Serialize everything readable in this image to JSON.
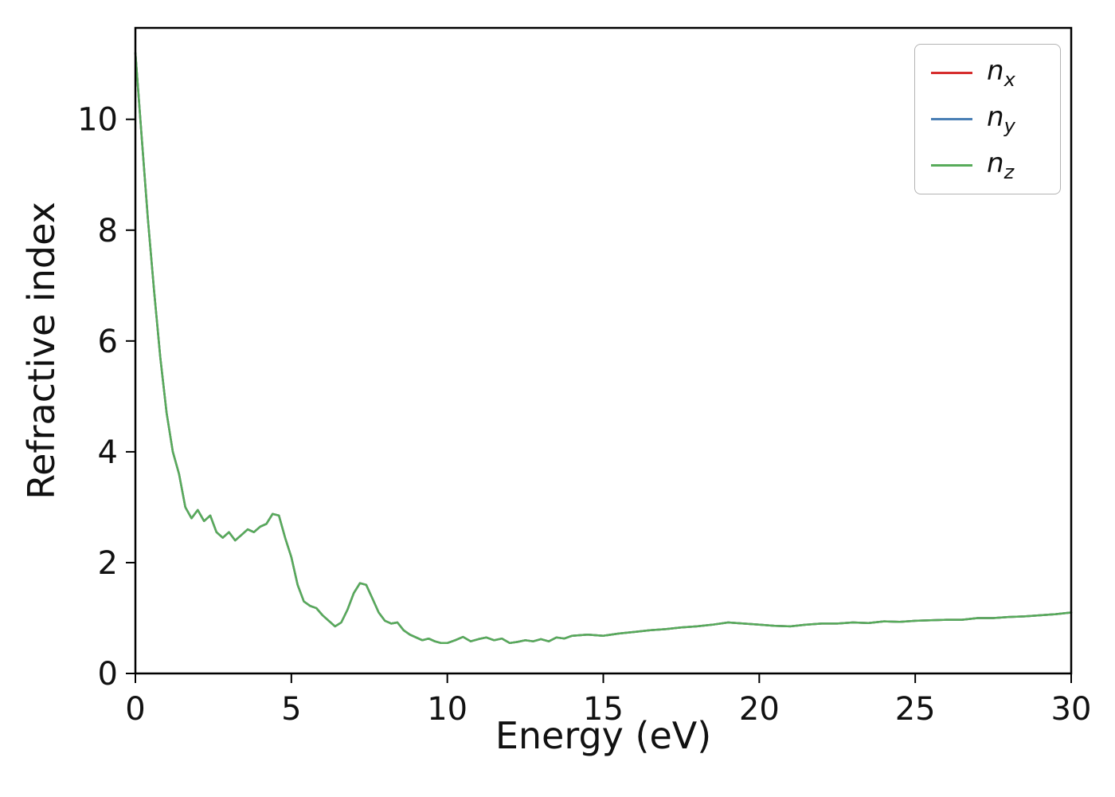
{
  "figure": {
    "background": "#ffffff"
  },
  "chart_data": {
    "type": "line",
    "title": "",
    "xlabel": "Energy (eV)",
    "ylabel": "Refractive index",
    "xlim": [
      0,
      30
    ],
    "ylim": [
      0,
      11.65
    ],
    "x_ticks": [
      0,
      5,
      10,
      15,
      20,
      25,
      30
    ],
    "y_ticks": [
      0,
      2,
      4,
      6,
      8,
      10
    ],
    "grid": false,
    "legend_position": "upper right",
    "x": [
      0,
      0.2,
      0.4,
      0.6,
      0.8,
      1,
      1.2,
      1.4,
      1.6,
      1.8,
      2,
      2.2,
      2.4,
      2.6,
      2.8,
      3,
      3.2,
      3.4,
      3.6,
      3.8,
      4,
      4.2,
      4.4,
      4.6,
      4.8,
      5,
      5.2,
      5.4,
      5.6,
      5.8,
      6,
      6.2,
      6.4,
      6.6,
      6.8,
      7,
      7.2,
      7.4,
      7.6,
      7.8,
      8,
      8.2,
      8.4,
      8.6,
      8.8,
      9,
      9.2,
      9.4,
      9.6,
      9.8,
      10,
      10.25,
      10.5,
      10.75,
      11,
      11.25,
      11.5,
      11.75,
      12,
      12.25,
      12.5,
      12.75,
      13,
      13.25,
      13.5,
      13.75,
      14,
      14.5,
      15,
      15.5,
      16,
      16.5,
      17,
      17.5,
      18,
      18.5,
      19,
      19.5,
      20,
      20.5,
      21,
      21.5,
      22,
      22.5,
      23,
      23.5,
      24,
      24.5,
      25,
      25.5,
      26,
      26.5,
      27,
      27.5,
      28,
      28.5,
      29,
      29.5,
      30
    ],
    "series": [
      {
        "name": "n_x",
        "name_base": "n",
        "name_sub": "x",
        "color": "#d62d2d",
        "values": [
          11.2,
          9.7,
          8.2,
          6.9,
          5.7,
          4.7,
          4.0,
          3.6,
          3.0,
          2.8,
          2.95,
          2.75,
          2.85,
          2.55,
          2.45,
          2.55,
          2.4,
          2.5,
          2.6,
          2.55,
          2.65,
          2.7,
          2.88,
          2.85,
          2.45,
          2.1,
          1.6,
          1.3,
          1.22,
          1.18,
          1.05,
          0.95,
          0.85,
          0.92,
          1.15,
          1.45,
          1.63,
          1.6,
          1.35,
          1.1,
          0.95,
          0.9,
          0.92,
          0.78,
          0.7,
          0.65,
          0.6,
          0.63,
          0.58,
          0.55,
          0.55,
          0.6,
          0.66,
          0.58,
          0.62,
          0.65,
          0.6,
          0.63,
          0.55,
          0.57,
          0.6,
          0.58,
          0.62,
          0.58,
          0.65,
          0.63,
          0.68,
          0.7,
          0.68,
          0.72,
          0.75,
          0.78,
          0.8,
          0.83,
          0.85,
          0.88,
          0.92,
          0.9,
          0.88,
          0.86,
          0.85,
          0.88,
          0.9,
          0.9,
          0.92,
          0.91,
          0.94,
          0.93,
          0.95,
          0.96,
          0.97,
          0.97,
          1.0,
          1.0,
          1.02,
          1.03,
          1.05,
          1.07,
          1.1
        ]
      },
      {
        "name": "n_y",
        "name_base": "n",
        "name_sub": "y",
        "color": "#4a7fb5",
        "values": [
          11.2,
          9.7,
          8.2,
          6.9,
          5.7,
          4.7,
          4.0,
          3.6,
          3.0,
          2.8,
          2.95,
          2.75,
          2.85,
          2.55,
          2.45,
          2.55,
          2.4,
          2.5,
          2.6,
          2.55,
          2.65,
          2.7,
          2.88,
          2.85,
          2.45,
          2.1,
          1.6,
          1.3,
          1.22,
          1.18,
          1.05,
          0.95,
          0.85,
          0.92,
          1.15,
          1.45,
          1.63,
          1.6,
          1.35,
          1.1,
          0.95,
          0.9,
          0.92,
          0.78,
          0.7,
          0.65,
          0.6,
          0.63,
          0.58,
          0.55,
          0.55,
          0.6,
          0.66,
          0.58,
          0.62,
          0.65,
          0.6,
          0.63,
          0.55,
          0.57,
          0.6,
          0.58,
          0.62,
          0.58,
          0.65,
          0.63,
          0.68,
          0.7,
          0.68,
          0.72,
          0.75,
          0.78,
          0.8,
          0.83,
          0.85,
          0.88,
          0.92,
          0.9,
          0.88,
          0.86,
          0.85,
          0.88,
          0.9,
          0.9,
          0.92,
          0.91,
          0.94,
          0.93,
          0.95,
          0.96,
          0.97,
          0.97,
          1.0,
          1.0,
          1.02,
          1.03,
          1.05,
          1.07,
          1.1
        ]
      },
      {
        "name": "n_z",
        "name_base": "n",
        "name_sub": "z",
        "color": "#57ab5a",
        "values": [
          11.2,
          9.7,
          8.2,
          6.9,
          5.7,
          4.7,
          4.0,
          3.6,
          3.0,
          2.8,
          2.95,
          2.75,
          2.85,
          2.55,
          2.45,
          2.55,
          2.4,
          2.5,
          2.6,
          2.55,
          2.65,
          2.7,
          2.88,
          2.85,
          2.45,
          2.1,
          1.6,
          1.3,
          1.22,
          1.18,
          1.05,
          0.95,
          0.85,
          0.92,
          1.15,
          1.45,
          1.63,
          1.6,
          1.35,
          1.1,
          0.95,
          0.9,
          0.92,
          0.78,
          0.7,
          0.65,
          0.6,
          0.63,
          0.58,
          0.55,
          0.55,
          0.6,
          0.66,
          0.58,
          0.62,
          0.65,
          0.6,
          0.63,
          0.55,
          0.57,
          0.6,
          0.58,
          0.62,
          0.58,
          0.65,
          0.63,
          0.68,
          0.7,
          0.68,
          0.72,
          0.75,
          0.78,
          0.8,
          0.83,
          0.85,
          0.88,
          0.92,
          0.9,
          0.88,
          0.86,
          0.85,
          0.88,
          0.9,
          0.9,
          0.92,
          0.91,
          0.94,
          0.93,
          0.95,
          0.96,
          0.97,
          0.97,
          1.0,
          1.0,
          1.02,
          1.03,
          1.05,
          1.07,
          1.1
        ]
      }
    ]
  }
}
